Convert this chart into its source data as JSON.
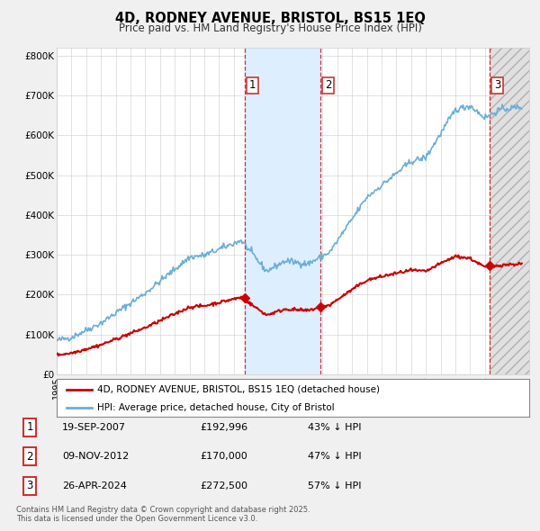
{
  "title": "4D, RODNEY AVENUE, BRISTOL, BS15 1EQ",
  "subtitle": "Price paid vs. HM Land Registry's House Price Index (HPI)",
  "ylim": [
    0,
    820000
  ],
  "yticks": [
    0,
    100000,
    200000,
    300000,
    400000,
    500000,
    600000,
    700000,
    800000
  ],
  "ytick_labels": [
    "£0",
    "£100K",
    "£200K",
    "£300K",
    "£400K",
    "£500K",
    "£600K",
    "£700K",
    "£800K"
  ],
  "sale_dates": [
    2007.72,
    2012.86,
    2024.32
  ],
  "sale_prices": [
    192996,
    170000,
    272500
  ],
  "sale_labels": [
    "1",
    "2",
    "3"
  ],
  "hpi_color": "#6baed6",
  "sale_color": "#cc0000",
  "vline_color": "#cc0000",
  "shade_color": "#ddeeff",
  "legend_sale": "4D, RODNEY AVENUE, BRISTOL, BS15 1EQ (detached house)",
  "legend_hpi": "HPI: Average price, detached house, City of Bristol",
  "table_rows": [
    [
      "1",
      "19-SEP-2007",
      "£192,996",
      "43% ↓ HPI"
    ],
    [
      "2",
      "09-NOV-2012",
      "£170,000",
      "47% ↓ HPI"
    ],
    [
      "3",
      "26-APR-2024",
      "£272,500",
      "57% ↓ HPI"
    ]
  ],
  "footer": "Contains HM Land Registry data © Crown copyright and database right 2025.\nThis data is licensed under the Open Government Licence v3.0.",
  "background_color": "#f0f0f0",
  "plot_bg_color": "#ffffff"
}
